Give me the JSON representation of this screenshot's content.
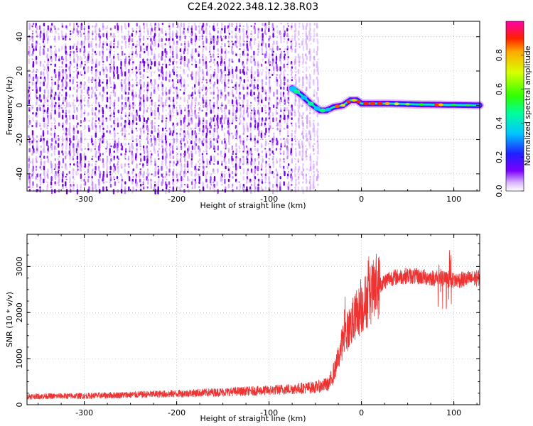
{
  "figure": {
    "title": "C2E4.2022.348.12.38.R03"
  },
  "chart_data": [
    {
      "type": "heatmap",
      "name": "spectrogram",
      "xlabel": "Height of straight line (km)",
      "ylabel": "Frequency (Hz)",
      "xlim": [
        -362,
        128
      ],
      "ylim": [
        -50,
        49
      ],
      "x_ticks": [
        -300,
        -200,
        -100,
        0,
        100
      ],
      "y_ticks": [
        -40,
        -20,
        0,
        20,
        40
      ],
      "grid": true,
      "colorbar": {
        "label": "Normalized spectral amplitude",
        "range": [
          0,
          1
        ],
        "ticks": [
          0.0,
          0.2,
          0.4,
          0.6,
          0.8
        ],
        "colormap": "rainbow"
      },
      "noise_region_x": [
        -362,
        -45
      ],
      "tone_path": [
        {
          "x": -75,
          "y": 10
        },
        {
          "x": -65,
          "y": 6
        },
        {
          "x": -55,
          "y": 1
        },
        {
          "x": -45,
          "y": -3
        },
        {
          "x": -38,
          "y": -3
        },
        {
          "x": -30,
          "y": -1
        },
        {
          "x": -20,
          "y": 0
        },
        {
          "x": -12,
          "y": 3
        },
        {
          "x": -5,
          "y": 3
        },
        {
          "x": 0,
          "y": 1
        },
        {
          "x": 30,
          "y": 1
        },
        {
          "x": 60,
          "y": 0.5
        },
        {
          "x": 128,
          "y": 0
        }
      ]
    },
    {
      "type": "line",
      "name": "snr",
      "xlabel": "Height of straight line (km)",
      "ylabel": "SNR (10 * v/v)",
      "xlim": [
        -362,
        128
      ],
      "ylim": [
        0,
        3700
      ],
      "x_ticks": [
        -300,
        -200,
        -100,
        0,
        100
      ],
      "y_ticks": [
        0,
        1000,
        2000,
        3000
      ],
      "grid": true,
      "series_color": "#ee3333",
      "envelope": [
        {
          "x": -362,
          "y": 180
        },
        {
          "x": -300,
          "y": 190
        },
        {
          "x": -200,
          "y": 240
        },
        {
          "x": -100,
          "y": 310
        },
        {
          "x": -50,
          "y": 380
        },
        {
          "x": -35,
          "y": 450
        },
        {
          "x": -28,
          "y": 800
        },
        {
          "x": -20,
          "y": 1400
        },
        {
          "x": -10,
          "y": 1800
        },
        {
          "x": 0,
          "y": 2100
        },
        {
          "x": 10,
          "y": 2400
        },
        {
          "x": 20,
          "y": 2600
        },
        {
          "x": 30,
          "y": 2750
        },
        {
          "x": 50,
          "y": 2800
        },
        {
          "x": 80,
          "y": 2750
        },
        {
          "x": 100,
          "y": 2700
        },
        {
          "x": 128,
          "y": 2750
        }
      ]
    }
  ]
}
